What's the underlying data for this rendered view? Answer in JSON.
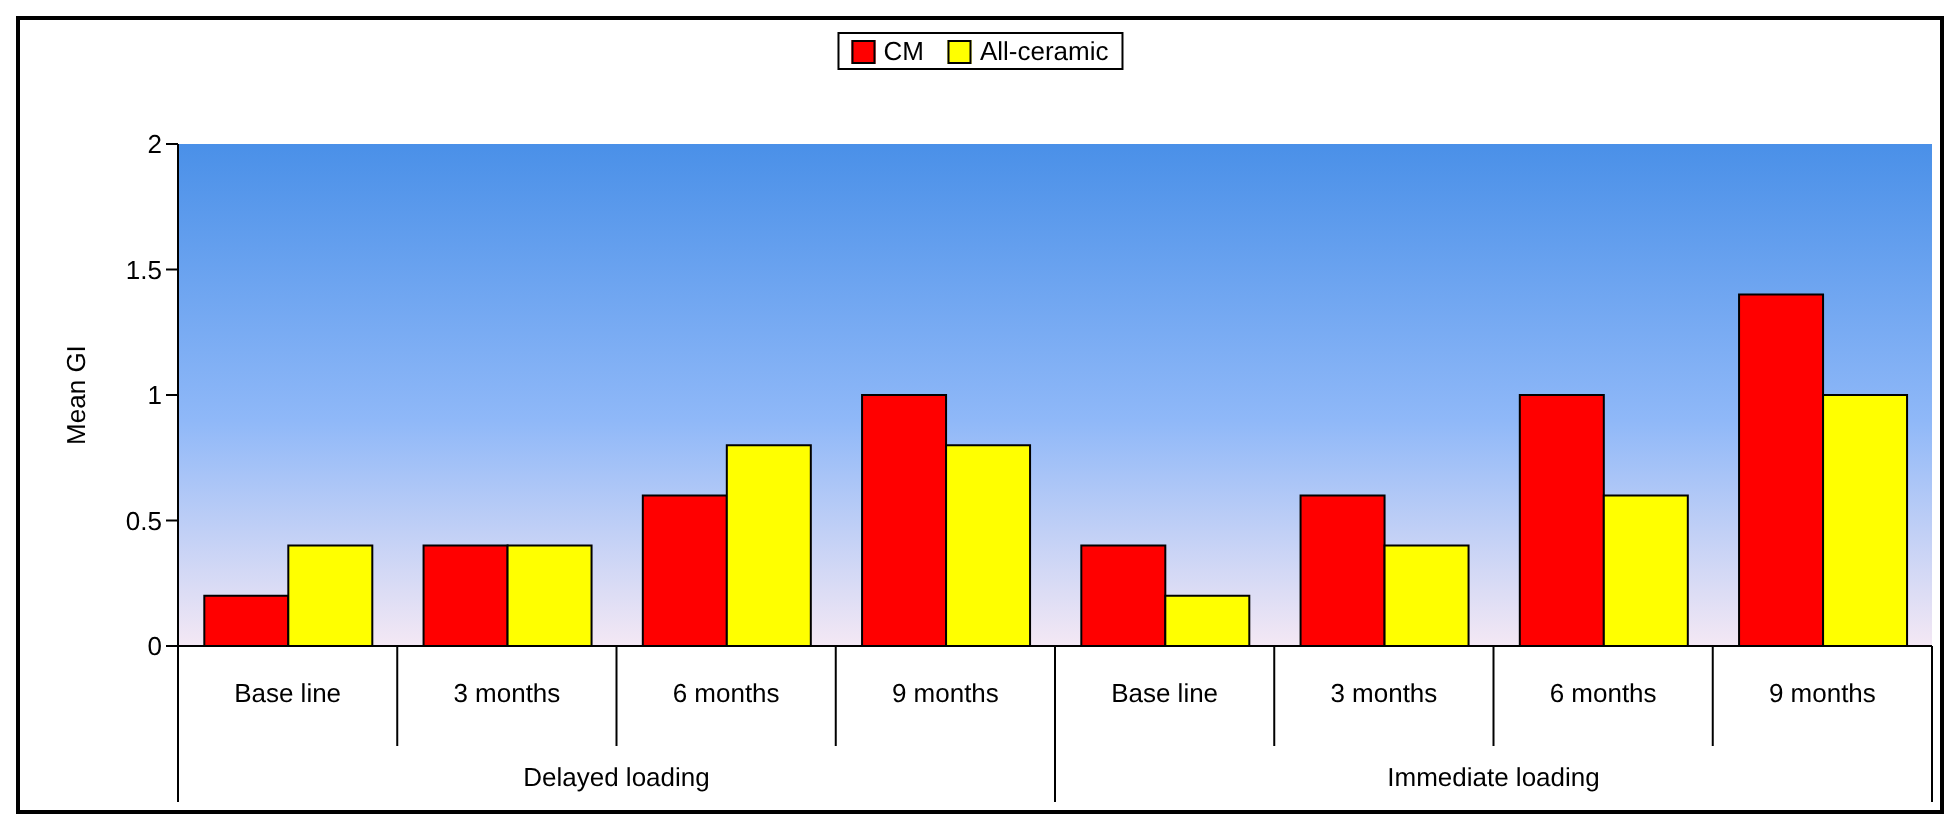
{
  "chart_data": {
    "type": "bar",
    "ylabel": "Mean GI",
    "categories": [
      "Base line",
      "3 months",
      "6 months",
      "9 months",
      "Base line",
      "3 months",
      "6 months",
      "9 months"
    ],
    "series": [
      {
        "name": "CM",
        "color": "#ff0000",
        "values": [
          0.2,
          0.4,
          0.6,
          1.0,
          0.4,
          0.6,
          1.0,
          1.4
        ]
      },
      {
        "name": "All-ceramic",
        "color": "#ffff00",
        "values": [
          0.4,
          0.4,
          0.8,
          0.8,
          0.2,
          0.4,
          0.6,
          1.0
        ]
      }
    ],
    "annotations": [
      "Delayed loading",
      "Immediate loading"
    ],
    "ylim": [
      0,
      2
    ],
    "yticks": [
      0,
      0.5,
      1,
      1.5,
      2
    ],
    "grid": false,
    "legend": "top"
  }
}
